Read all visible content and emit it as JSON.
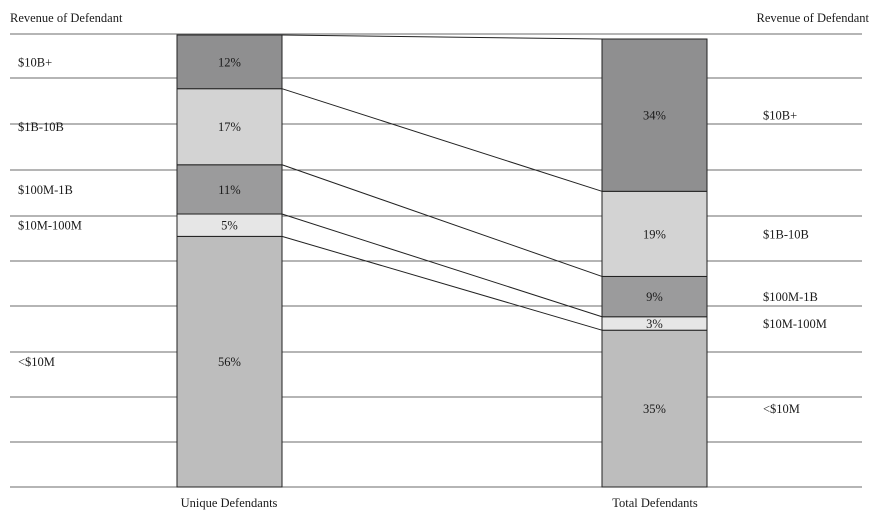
{
  "chart_data": {
    "type": "bar",
    "subtype": "stacked-100-percent",
    "left_axis_header": "Revenue of Defendant",
    "right_axis_header": "Revenue of Defendant",
    "categories": [
      "Unique Defendants",
      "Total Defendants"
    ],
    "series": [
      {
        "name": "<$10M",
        "label": "<$10M",
        "values": [
          56,
          35
        ],
        "value_labels": [
          "56%",
          "35%"
        ],
        "color": "#bdbdbd"
      },
      {
        "name": "$10M-100M",
        "label": "$10M-100M",
        "values": [
          5,
          3
        ],
        "value_labels": [
          "5%",
          "3%"
        ],
        "color": "#e6e6e6"
      },
      {
        "name": "$100M-1B",
        "label": "$100M-1B",
        "values": [
          11,
          9
        ],
        "value_labels": [
          "11%",
          "9%"
        ],
        "color": "#9b9b9c"
      },
      {
        "name": "$1B-10B",
        "label": "$1B-10B",
        "values": [
          17,
          19
        ],
        "value_labels": [
          "17%",
          "19%"
        ],
        "color": "#d3d3d3"
      },
      {
        "name": "$10B+",
        "label": "$10B+",
        "values": [
          12,
          34
        ],
        "value_labels": [
          "12%",
          "34%"
        ],
        "color": "#8f8f90"
      }
    ],
    "grid": true,
    "connector_lines": true
  }
}
